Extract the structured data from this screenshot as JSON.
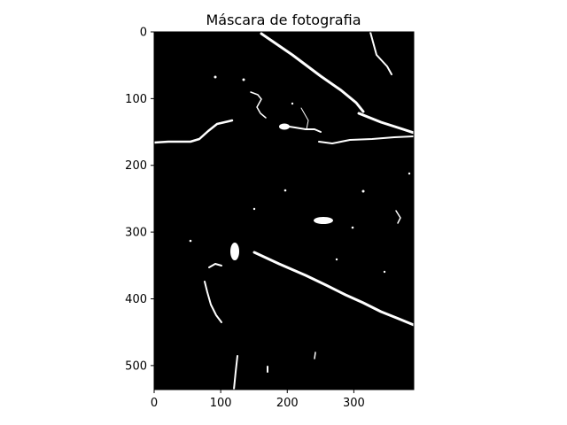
{
  "figure": {
    "title": "Máscara de fotografia",
    "image_description": "binary mask of a photograph: black background with scattered white edge strokes",
    "x_axis": {
      "ticks": [
        0,
        100,
        200,
        300
      ],
      "tick_labels": [
        "0",
        "100",
        "200",
        "300"
      ],
      "range": [
        0,
        390
      ]
    },
    "y_axis": {
      "ticks": [
        0,
        100,
        200,
        300,
        400,
        500
      ],
      "tick_labels": [
        "0",
        "100",
        "200",
        "300",
        "400",
        "500"
      ],
      "range": [
        0,
        536
      ],
      "inverted": true
    },
    "colors": {
      "mask_background": "#000000",
      "mask_foreground": "#ffffff"
    }
  }
}
